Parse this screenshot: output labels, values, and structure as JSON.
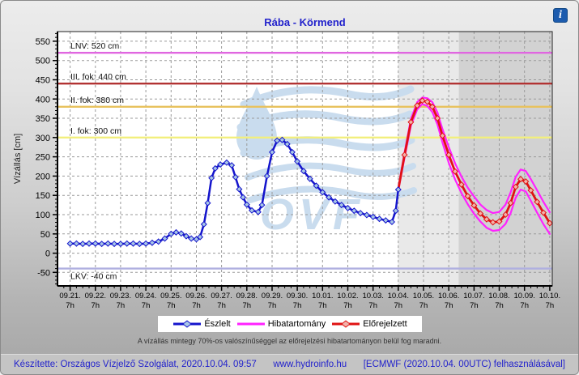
{
  "header": {
    "title": "Rába - Körmend",
    "info_icon": "i"
  },
  "watermark": {
    "text": "OVF"
  },
  "chart_data": {
    "type": "line",
    "title": "Rába - Körmend",
    "ylabel": "Vízállás [cm]",
    "xlim": [
      -0.5,
      19.1
    ],
    "ylim": [
      -85,
      575
    ],
    "y_ticks": [
      -50,
      0,
      50,
      100,
      150,
      200,
      250,
      300,
      350,
      400,
      450,
      500,
      550
    ],
    "x_ticks": {
      "dates": [
        "09.21.",
        "09.22.",
        "09.23.",
        "09.24.",
        "09.25.",
        "09.26.",
        "09.27.",
        "09.28.",
        "09.29.",
        "09.30.",
        "10.01.",
        "10.02.",
        "10.03.",
        "10.04.",
        "10.05.",
        "10.06.",
        "10.07.",
        "10.08.",
        "10.09.",
        "10.10."
      ],
      "hour": "7h"
    },
    "zones": [
      {
        "id": "observed",
        "from": -0.5,
        "to": 13.0,
        "color": "#ffffff"
      },
      {
        "id": "forecast-near",
        "from": 13.0,
        "to": 15.4,
        "color": "#e9e9e9"
      },
      {
        "id": "forecast-far",
        "from": 15.4,
        "to": 19.1,
        "color": "#d2d2d2"
      }
    ],
    "reference_lines": [
      {
        "id": "lnv",
        "label": "LNV: 520 cm",
        "value": 520,
        "color": "#e066e0",
        "label_pos": "above"
      },
      {
        "id": "fok3",
        "label": "III. fok: 440 cm",
        "value": 440,
        "color": "#b23333",
        "label_pos": "above"
      },
      {
        "id": "fok2",
        "label": "II. fok: 380 cm",
        "value": 380,
        "color": "#e8c25e",
        "label_pos": "above"
      },
      {
        "id": "fok1",
        "label": "I. fok: 300 cm",
        "value": 300,
        "color": "#f2ef7d",
        "label_pos": "above"
      },
      {
        "id": "lkv",
        "label": "LKV: -40 cm",
        "value": -40,
        "color": "#b0b0e0",
        "label_pos": "below"
      }
    ],
    "series": [
      {
        "id": "band_upper",
        "name": "Hibatartomány",
        "color": "#ff22ff",
        "width": 2.2,
        "markers": false,
        "points": [
          [
            13,
            168
          ],
          [
            13.25,
            262
          ],
          [
            13.5,
            348
          ],
          [
            13.75,
            392
          ],
          [
            13.95,
            404
          ],
          [
            14.15,
            402
          ],
          [
            14.35,
            392
          ],
          [
            14.55,
            365
          ],
          [
            14.75,
            322
          ],
          [
            15,
            275
          ],
          [
            15.25,
            233
          ],
          [
            15.5,
            199
          ],
          [
            15.75,
            170
          ],
          [
            16,
            147
          ],
          [
            16.25,
            126
          ],
          [
            16.5,
            112
          ],
          [
            16.75,
            104
          ],
          [
            17,
            107
          ],
          [
            17.25,
            126
          ],
          [
            17.45,
            158
          ],
          [
            17.65,
            198
          ],
          [
            17.85,
            217
          ],
          [
            18.05,
            213
          ],
          [
            18.25,
            192
          ],
          [
            18.5,
            163
          ],
          [
            18.75,
            133
          ],
          [
            19,
            106
          ]
        ]
      },
      {
        "id": "band_lower",
        "name": "Hibatartomány",
        "color": "#ff22ff",
        "width": 2.2,
        "markers": false,
        "points": [
          [
            13,
            162
          ],
          [
            13.25,
            248
          ],
          [
            13.5,
            331
          ],
          [
            13.75,
            373
          ],
          [
            13.95,
            387
          ],
          [
            14.15,
            382
          ],
          [
            14.35,
            366
          ],
          [
            14.55,
            334
          ],
          [
            14.75,
            287
          ],
          [
            15,
            234
          ],
          [
            15.25,
            191
          ],
          [
            15.5,
            156
          ],
          [
            15.75,
            127
          ],
          [
            16,
            102
          ],
          [
            16.25,
            82
          ],
          [
            16.5,
            66
          ],
          [
            16.75,
            58
          ],
          [
            17,
            60
          ],
          [
            17.25,
            76
          ],
          [
            17.45,
            104
          ],
          [
            17.65,
            144
          ],
          [
            17.85,
            165
          ],
          [
            18.05,
            160
          ],
          [
            18.25,
            136
          ],
          [
            18.5,
            105
          ],
          [
            18.75,
            75
          ],
          [
            19,
            50
          ]
        ]
      },
      {
        "id": "forecast",
        "name": "Előrejelzett",
        "color": "#e01212",
        "width": 2.8,
        "markers": true,
        "marker_fill": "#f2b2aa",
        "skip_first_marker": true,
        "points": [
          [
            13,
            165
          ],
          [
            13.25,
            255
          ],
          [
            13.5,
            340
          ],
          [
            13.75,
            383
          ],
          [
            13.95,
            396
          ],
          [
            14.15,
            393
          ],
          [
            14.35,
            380
          ],
          [
            14.55,
            350
          ],
          [
            14.75,
            305
          ],
          [
            15,
            255
          ],
          [
            15.25,
            212
          ],
          [
            15.5,
            178
          ],
          [
            15.75,
            148
          ],
          [
            16,
            124
          ],
          [
            16.25,
            103
          ],
          [
            16.5,
            88
          ],
          [
            16.75,
            80
          ],
          [
            17,
            82
          ],
          [
            17.25,
            100
          ],
          [
            17.45,
            130
          ],
          [
            17.65,
            172
          ],
          [
            17.85,
            192
          ],
          [
            18.05,
            186
          ],
          [
            18.25,
            163
          ],
          [
            18.5,
            133
          ],
          [
            18.75,
            105
          ],
          [
            19,
            78
          ]
        ]
      },
      {
        "id": "observed",
        "name": "Észlelt",
        "color": "#1414cc",
        "width": 2.5,
        "markers": true,
        "marker_fill": "#a8c6e6",
        "points": [
          [
            0,
            25
          ],
          [
            0.25,
            25
          ],
          [
            0.5,
            24
          ],
          [
            0.75,
            25
          ],
          [
            1,
            25
          ],
          [
            1.25,
            24
          ],
          [
            1.5,
            25
          ],
          [
            1.75,
            24
          ],
          [
            2,
            24
          ],
          [
            2.25,
            25
          ],
          [
            2.5,
            25
          ],
          [
            2.75,
            24
          ],
          [
            3,
            25
          ],
          [
            3.25,
            27
          ],
          [
            3.5,
            30
          ],
          [
            3.75,
            38
          ],
          [
            4,
            50
          ],
          [
            4.2,
            54
          ],
          [
            4.4,
            51
          ],
          [
            4.6,
            44
          ],
          [
            4.8,
            38
          ],
          [
            5,
            36
          ],
          [
            5.15,
            42
          ],
          [
            5.3,
            75
          ],
          [
            5.45,
            130
          ],
          [
            5.6,
            195
          ],
          [
            5.75,
            220
          ],
          [
            5.95,
            230
          ],
          [
            6.2,
            235
          ],
          [
            6.4,
            228
          ],
          [
            6.55,
            197
          ],
          [
            6.7,
            166
          ],
          [
            6.85,
            145
          ],
          [
            7,
            126
          ],
          [
            7.2,
            111
          ],
          [
            7.45,
            107
          ],
          [
            7.6,
            125
          ],
          [
            7.8,
            200
          ],
          [
            8,
            262
          ],
          [
            8.2,
            292
          ],
          [
            8.4,
            294
          ],
          [
            8.6,
            283
          ],
          [
            8.8,
            262
          ],
          [
            9,
            238
          ],
          [
            9.25,
            213
          ],
          [
            9.5,
            193
          ],
          [
            9.75,
            175
          ],
          [
            10,
            158
          ],
          [
            10.25,
            145
          ],
          [
            10.5,
            134
          ],
          [
            10.75,
            125
          ],
          [
            11,
            117
          ],
          [
            11.25,
            110
          ],
          [
            11.5,
            104
          ],
          [
            11.75,
            99
          ],
          [
            12,
            94
          ],
          [
            12.25,
            89
          ],
          [
            12.5,
            85
          ],
          [
            12.75,
            81
          ],
          [
            12.9,
            110
          ],
          [
            13,
            165
          ]
        ]
      }
    ],
    "legend": [
      {
        "label": "Észlelt",
        "color": "#1414cc",
        "marker": true,
        "marker_fill": "#a8c6e6"
      },
      {
        "label": "Hibatartomány",
        "color": "#ff22ff",
        "marker": false,
        "marker_fill": ""
      },
      {
        "label": "Előrejelzett",
        "color": "#e01212",
        "marker": true,
        "marker_fill": "#f2b2aa"
      }
    ],
    "note": "A vízállás mintegy 70%-os valószínűséggel az előrejelzési hibatartományon belül fog maradni."
  },
  "footer": {
    "left": "Készítette: Országos Vízjelző Szolgálat, 2020.10.04. 09:57",
    "center": "www.hydroinfo.hu",
    "right": "[ECMWF (2020.10.04. 00UTC) felhasználásával]"
  }
}
